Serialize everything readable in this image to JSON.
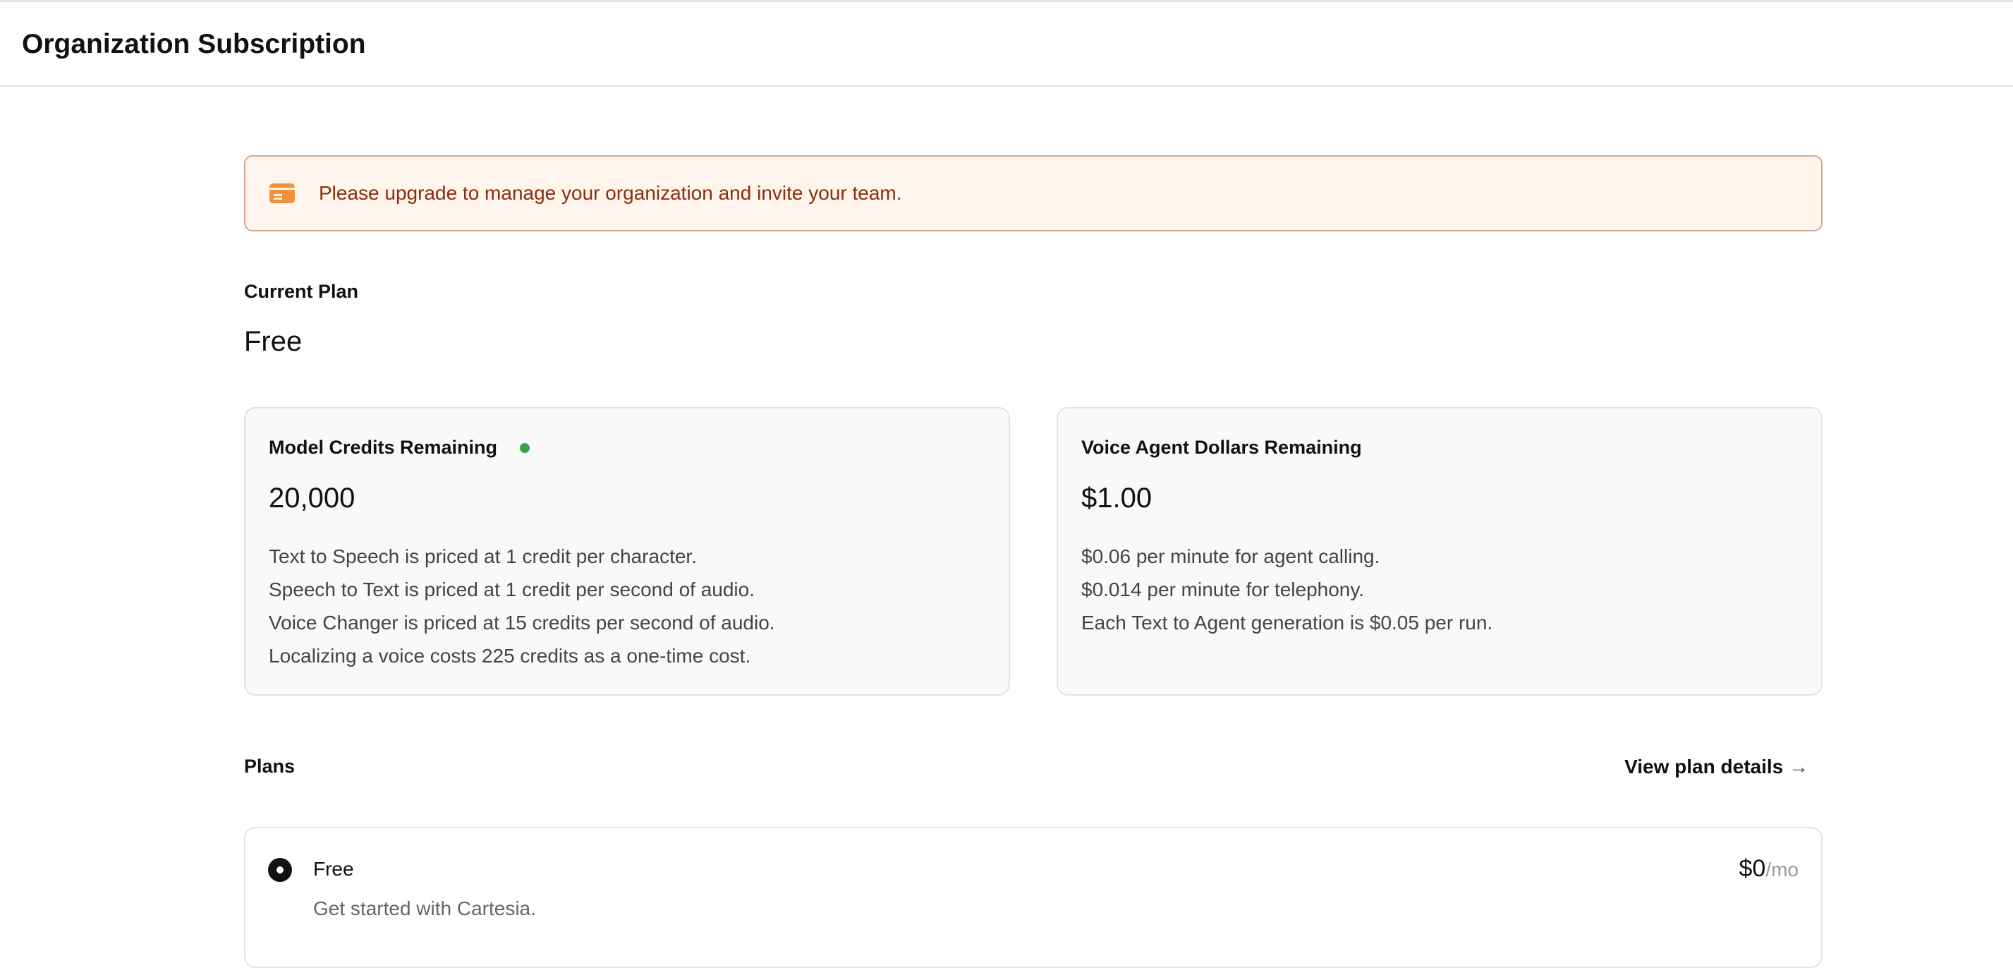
{
  "header": {
    "title": "Organization Subscription"
  },
  "banner": {
    "icon": "credit-card-icon",
    "message": "Please upgrade to manage your organization and invite your team.",
    "accent": "#f0923a"
  },
  "current_plan": {
    "label": "Current Plan",
    "value": "Free"
  },
  "cards": [
    {
      "title": "Model Credits Remaining",
      "status_color": "#3aa34a",
      "value": "20,000",
      "lines": [
        "Text to Speech is priced at 1 credit per character.",
        "Speech to Text is priced at 1 credit per second of audio.",
        "Voice Changer is priced at 15 credits per second of audio.",
        "Localizing a voice costs 225 credits as a one-time cost."
      ]
    },
    {
      "title": "Voice Agent Dollars Remaining",
      "value": "$1.00",
      "lines": [
        "$0.06 per minute for agent calling.",
        "$0.014 per minute for telephony.",
        "Each Text to Agent generation is $0.05 per run."
      ]
    }
  ],
  "plans": {
    "label": "Plans",
    "view_details": "View plan details",
    "items": [
      {
        "name": "Free",
        "description": "Get started with Cartesia.",
        "price": "$0",
        "period": "/mo",
        "selected": true
      }
    ]
  }
}
